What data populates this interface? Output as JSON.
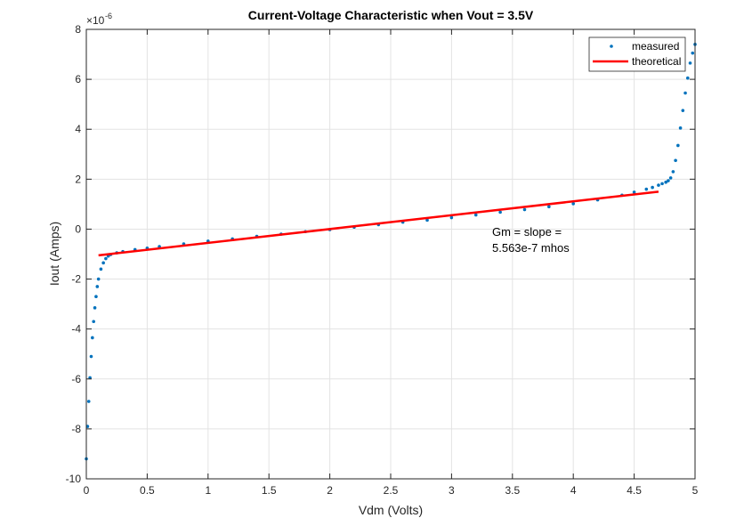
{
  "chart_data": {
    "type": "scatter",
    "title": "Current-Voltage Characteristic when Vout = 3.5V",
    "xlabel": "Vdm (Volts)",
    "ylabel": "Iout (Amps)",
    "xlim": [
      0,
      5
    ],
    "ylim": [
      -10,
      8
    ],
    "y_multiplier_label": "×10",
    "y_multiplier_exponent": "-6",
    "x_ticks": [
      0,
      0.5,
      1,
      1.5,
      2,
      2.5,
      3,
      3.5,
      4,
      4.5,
      5
    ],
    "x_tick_labels": [
      "0",
      "0.5",
      "1",
      "1.5",
      "2",
      "2.5",
      "3",
      "3.5",
      "4",
      "4.5",
      "5"
    ],
    "y_ticks": [
      -10,
      -8,
      -6,
      -4,
      -2,
      0,
      2,
      4,
      6,
      8
    ],
    "y_tick_labels": [
      "-10",
      "-8",
      "-6",
      "-4",
      "-2",
      "0",
      "2",
      "4",
      "6",
      "8"
    ],
    "grid": true,
    "legend_position": "top-right",
    "annotation": [
      "Gm = slope =",
      "5.563e-7 mhos"
    ],
    "series": [
      {
        "name": "measured",
        "style": "points",
        "color": "#0072BD",
        "x": [
          0.0,
          0.01,
          0.02,
          0.03,
          0.04,
          0.05,
          0.06,
          0.07,
          0.08,
          0.09,
          0.1,
          0.12,
          0.14,
          0.16,
          0.18,
          0.2,
          0.25,
          0.3,
          0.4,
          0.5,
          0.6,
          0.8,
          1.0,
          1.2,
          1.4,
          1.6,
          1.8,
          2.0,
          2.2,
          2.4,
          2.6,
          2.8,
          3.0,
          3.2,
          3.4,
          3.6,
          3.8,
          4.0,
          4.2,
          4.4,
          4.5,
          4.6,
          4.65,
          4.7,
          4.73,
          4.76,
          4.78,
          4.8,
          4.82,
          4.84,
          4.86,
          4.88,
          4.9,
          4.92,
          4.94,
          4.96,
          4.98,
          5.0
        ],
        "y": [
          -9.2,
          -7.9,
          -6.9,
          -5.95,
          -5.1,
          -4.35,
          -3.7,
          -3.15,
          -2.7,
          -2.3,
          -2.0,
          -1.6,
          -1.35,
          -1.18,
          -1.08,
          -1.02,
          -0.95,
          -0.9,
          -0.82,
          -0.76,
          -0.7,
          -0.59,
          -0.48,
          -0.39,
          -0.29,
          -0.2,
          -0.1,
          -0.02,
          0.08,
          0.18,
          0.28,
          0.36,
          0.46,
          0.57,
          0.68,
          0.78,
          0.9,
          1.02,
          1.17,
          1.36,
          1.48,
          1.6,
          1.67,
          1.76,
          1.82,
          1.88,
          1.94,
          2.05,
          2.3,
          2.75,
          3.35,
          4.05,
          4.75,
          5.45,
          6.05,
          6.65,
          7.05,
          7.4
        ]
      },
      {
        "name": "theoretical",
        "style": "line",
        "color": "#FF0000",
        "x": [
          0.1,
          4.7
        ],
        "y": [
          -1.05,
          1.5
        ]
      }
    ]
  }
}
